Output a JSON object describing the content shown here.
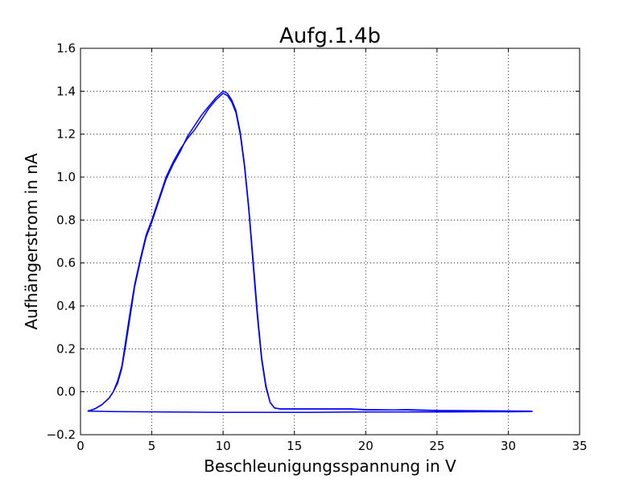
{
  "chart_data": {
    "type": "line",
    "title": "Aufg.1.4b",
    "xlabel": "Beschleunigungsspannung in V",
    "ylabel": "Aufhängerstrom in nA",
    "xlim": [
      0,
      35
    ],
    "ylim": [
      -0.2,
      1.6
    ],
    "xticks": [
      0,
      5,
      10,
      15,
      20,
      25,
      30,
      35
    ],
    "xtick_labels": [
      "0",
      "5",
      "10",
      "15",
      "20",
      "25",
      "30",
      "35"
    ],
    "yticks": [
      -0.2,
      0.0,
      0.2,
      0.4,
      0.6,
      0.8,
      1.0,
      1.2,
      1.4,
      1.6
    ],
    "ytick_labels": [
      "−0.2",
      "0.0",
      "0.2",
      "0.4",
      "0.6",
      "0.8",
      "1.0",
      "1.2",
      "1.4",
      "1.6"
    ],
    "grid": true,
    "line_color": "#0000ff",
    "series": [
      {
        "x": [
          0.5,
          1.0,
          1.5,
          2.0,
          2.3,
          2.6,
          2.9,
          3.2,
          3.5,
          3.8,
          4.2,
          4.6,
          5.0,
          5.5,
          6.0,
          6.5,
          7.0,
          7.5,
          8.0,
          8.5,
          9.0,
          9.5,
          10.0,
          10.3,
          10.6,
          10.9,
          11.2,
          11.5,
          11.8,
          12.1,
          12.4,
          12.7,
          13.0,
          13.3,
          13.6,
          14.0,
          15.0,
          17.0,
          19.0,
          20.0,
          22.0,
          23.0,
          25.0,
          27.0,
          29.0,
          31.7
        ],
        "y": [
          -0.09,
          -0.08,
          -0.06,
          -0.03,
          0.0,
          0.05,
          0.12,
          0.25,
          0.38,
          0.5,
          0.62,
          0.73,
          0.8,
          0.9,
          1.0,
          1.07,
          1.13,
          1.18,
          1.22,
          1.27,
          1.32,
          1.36,
          1.39,
          1.38,
          1.35,
          1.3,
          1.2,
          1.05,
          0.85,
          0.6,
          0.35,
          0.15,
          0.02,
          -0.05,
          -0.075,
          -0.08,
          -0.08,
          -0.08,
          -0.08,
          -0.085,
          -0.085,
          -0.085,
          -0.088,
          -0.09,
          -0.09,
          -0.092
        ]
      },
      {
        "x": [
          0.5,
          1.0,
          1.5,
          2.0,
          2.3,
          2.6,
          2.9,
          3.2,
          3.5,
          3.8,
          4.2,
          4.6,
          5.0,
          5.5,
          6.0,
          6.5,
          7.0,
          7.5,
          8.0,
          8.5,
          9.0,
          9.5,
          10.0,
          10.3,
          10.6,
          10.9,
          11.2,
          11.5,
          11.8,
          12.1,
          12.4,
          12.7,
          13.0,
          13.3,
          13.6,
          14.0,
          15.0,
          17.0,
          19.0,
          20.0,
          22.0,
          23.0,
          25.0,
          27.0,
          29.0,
          31.7
        ],
        "y": [
          -0.09,
          -0.08,
          -0.06,
          -0.03,
          0.0,
          0.04,
          0.11,
          0.23,
          0.36,
          0.49,
          0.61,
          0.72,
          0.79,
          0.89,
          0.99,
          1.06,
          1.12,
          1.19,
          1.24,
          1.29,
          1.33,
          1.37,
          1.4,
          1.39,
          1.36,
          1.31,
          1.21,
          1.06,
          0.86,
          0.62,
          0.37,
          0.16,
          0.03,
          -0.05,
          -0.075,
          -0.08,
          -0.08,
          -0.08,
          -0.08,
          -0.083,
          -0.085,
          -0.083,
          -0.087,
          -0.088,
          -0.089,
          -0.09
        ]
      },
      {
        "x": [
          31.7,
          30.0,
          28.0,
          26.0,
          24.0,
          22.0,
          20.0,
          18.0,
          16.0,
          14.0,
          12.0,
          10.0,
          8.0,
          6.0,
          4.0,
          2.0,
          0.5
        ],
        "y": [
          -0.092,
          -0.093,
          -0.093,
          -0.094,
          -0.094,
          -0.094,
          -0.094,
          -0.095,
          -0.096,
          -0.096,
          -0.096,
          -0.096,
          -0.095,
          -0.094,
          -0.093,
          -0.092,
          -0.09
        ]
      }
    ]
  }
}
